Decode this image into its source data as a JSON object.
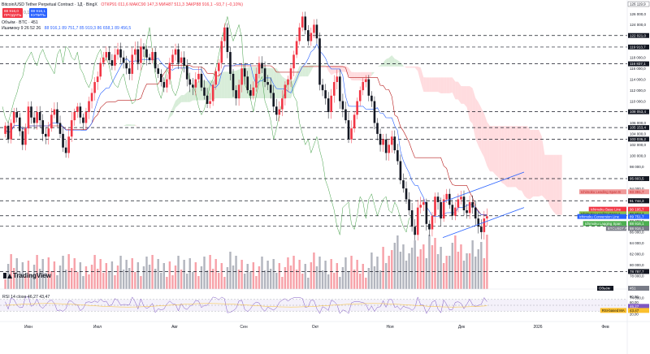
{
  "header": {
    "symbol": "Bitcoin/USD Tether Perpetual Contract · 1Д · BingX",
    "ohlc": "ОТКР91 011,6 МАКС90 147,3 МИН87 511,3 ЗАКР88 916,1 −93,7 (−0,10%)",
    "sell_price": "88 916,0",
    "sell_label": "ПРОДАТЬ",
    "spread": "0,1",
    "buy_price": "88 916,1",
    "buy_label": "КУПИТЬ",
    "volume_line": "Объём · BTC · 451",
    "ichimoku_line": "Ишимоку 9 26 52 26",
    "ichimoku_values": "88 916,1  89 751,7  85 919,3  86 658,1  89 456,5"
  },
  "price_axis": {
    "ticks": [
      "126 000,0",
      "124 000,0",
      "122 000,0",
      "120 000,0",
      "118 000,0",
      "116 000,0",
      "114 000,0",
      "112 000,0",
      "110 000,0",
      "108 000,0",
      "106 000,0",
      "104 000,0",
      "102 000,0",
      "100 000,0",
      "98 000,0",
      "96 000,0",
      "94 000,0",
      "92 000,0",
      "90 000,0",
      "88 000,0",
      "86 000,0",
      "84 000,0",
      "82 000,0",
      "80 000,0",
      "78 000,0",
      "76 000,0",
      "74 000,0",
      "72 000,0"
    ],
    "top_label": "126 119,9",
    "level_labels": [
      "122 021,0",
      "119 913,7",
      "116 837,1",
      "108 053,4",
      "105 153,4",
      "103 036,2",
      "95 803,5",
      "91 744,3",
      "88 993,3",
      "87 067,7",
      "78 787,7"
    ]
  },
  "price_tags": [
    {
      "label": "Ichimoku Leading Span B",
      "value": "93 391,7",
      "color": "#ef9a9a",
      "text": "#c62828"
    },
    {
      "label": "",
      "value": "91 744,3",
      "color": "#131722",
      "text": "#ffffff"
    },
    {
      "label": "Ichimoku Base Line",
      "value": "90 195,7",
      "color": "#f23645",
      "text": "#ffffff"
    },
    {
      "label": "Ichimoku Leading Span A",
      "value": "89 803,7",
      "color": "#8bc34a",
      "text": "#131722"
    },
    {
      "label": "Ichimoku Conversion Line",
      "value": "89 751,7",
      "color": "#2962ff",
      "text": "#ffffff"
    },
    {
      "label": "Ichimoku Lagging Span",
      "value": "88 916,1",
      "color": "#4caf50",
      "text": "#ffffff"
    },
    {
      "label": "BTCUSDT.P",
      "value": "88 916,1",
      "color": "#787b86",
      "text": "#ffffff"
    }
  ],
  "volume_label": "Объём",
  "volume_value": "451",
  "rsi": {
    "header": "RSI 14 close  46,27  43,47",
    "axis": [
      "80,00",
      "60,00",
      "40,00",
      "20,00"
    ],
    "tag_rsi": "46,27",
    "tag_label": "RSI-based MA",
    "tag_ma": "43,47"
  },
  "time_axis": [
    "Июн",
    "Июл",
    "Авг",
    "Сен",
    "Окт",
    "Ноя",
    "Дек",
    "2026",
    "Фев"
  ],
  "logo_text": "TradingView",
  "colors": {
    "up": "#f23645",
    "down": "#131722",
    "volume_up": "#f7a1a8",
    "volume_down": "#b2b5be",
    "cloud_green": "#c8e6c9",
    "cloud_red": "#ffcdd2",
    "base_line": "#b71c1c",
    "conversion_line": "#2962ff",
    "lagging_span": "#43a047",
    "channel": "#2962ff"
  },
  "chart_data": {
    "type": "candlestick",
    "title": "Bitcoin/USD Tether Perpetual Contract · 1Д · BingX",
    "price_range": [
      72000,
      127000
    ],
    "horizontal_levels": [
      122021.0,
      119913.7,
      116837.1,
      108053.4,
      105153.4,
      103036.2,
      95803.5,
      91744.3,
      88993.3,
      87067.7,
      78787.7
    ],
    "price_path": [
      104000,
      105500,
      103000,
      106000,
      108000,
      107000,
      104500,
      102000,
      105000,
      109000,
      107000,
      106000,
      108000,
      106500,
      104000,
      103500,
      105000,
      107500,
      108500,
      106000,
      104000,
      101500,
      100500,
      103500,
      106500,
      108000,
      109000,
      107000,
      106000,
      108000,
      110000,
      111500,
      113500,
      114500,
      117000,
      118000,
      119000,
      117500,
      116500,
      118500,
      119500,
      118000,
      117000,
      116000,
      115000,
      118500,
      119500,
      117000,
      120000,
      119500,
      118000,
      117500,
      119000,
      116000,
      115000,
      113500,
      112500,
      114000,
      117000,
      118500,
      119500,
      117000,
      118000,
      116500,
      114000,
      113000,
      112500,
      114000,
      115000,
      112500,
      111000,
      109500,
      110000,
      113000,
      115500,
      117000,
      121000,
      123500,
      119000,
      115000,
      112000,
      110500,
      113000,
      116000,
      114500,
      112000,
      111000,
      112500,
      115000,
      117000,
      116000,
      113500,
      113000,
      111500,
      109000,
      107500,
      108500,
      110500,
      113000,
      114000,
      116000,
      118500,
      121000,
      123500,
      125500,
      123000,
      121000,
      122500,
      124000,
      121500,
      113000,
      112000,
      110500,
      108000,
      111000,
      113500,
      114500,
      110000,
      108500,
      106500,
      103000,
      105000,
      107500,
      110000,
      112000,
      113500,
      114000,
      111000,
      110000,
      106000,
      104000,
      102000,
      103000,
      100500,
      102000,
      103500,
      101000,
      99000,
      95500,
      94000,
      92000,
      90000,
      87000,
      85500,
      90500,
      91000,
      91500,
      87500,
      86500,
      89000,
      92500,
      91500,
      88500,
      92000,
      93000,
      91000,
      89000,
      90500,
      92000,
      92500,
      90000,
      89500,
      91500,
      90500,
      88500,
      87000,
      86000,
      88500,
      88916
    ]
  }
}
